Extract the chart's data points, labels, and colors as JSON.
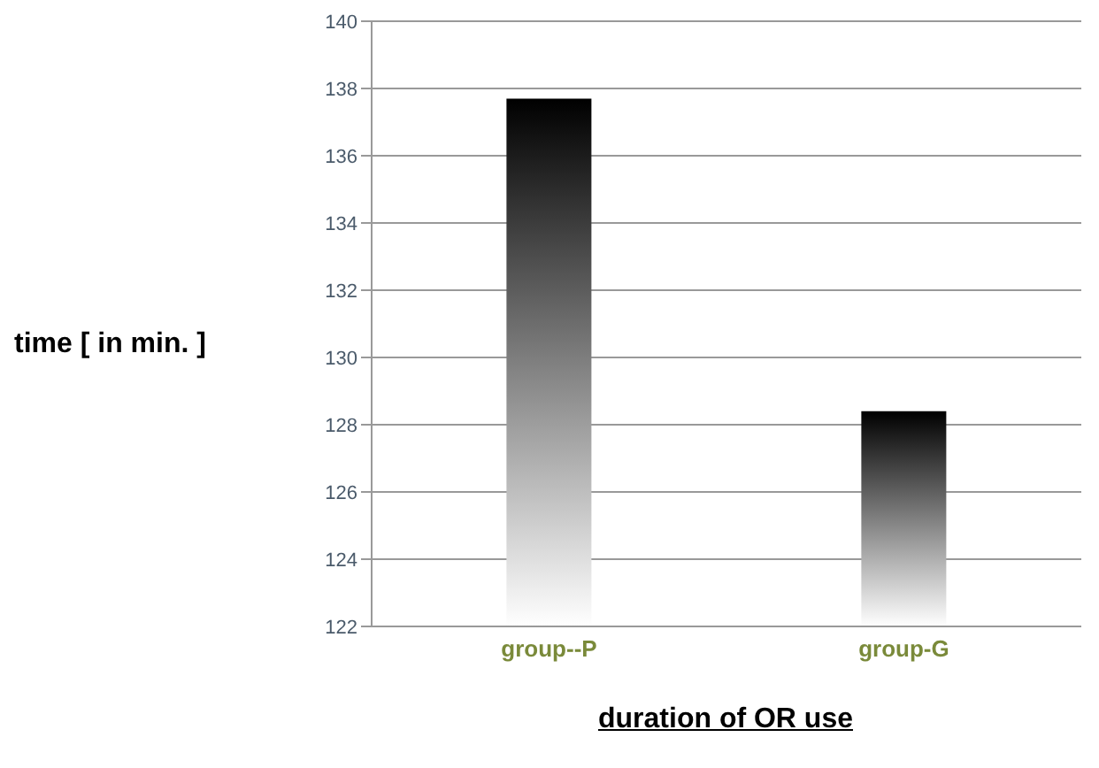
{
  "chart_data": {
    "type": "bar",
    "xlabel": "duration of OR use",
    "ylabel": "time [ in min. ]",
    "categories": [
      "group--P",
      "group-G"
    ],
    "values": [
      137.7,
      128.4
    ],
    "color": "#000000",
    "ylim": [
      122,
      140
    ],
    "yticks": [
      122,
      124,
      126,
      128,
      130,
      132,
      134,
      136,
      138,
      140
    ],
    "grid": "y"
  }
}
